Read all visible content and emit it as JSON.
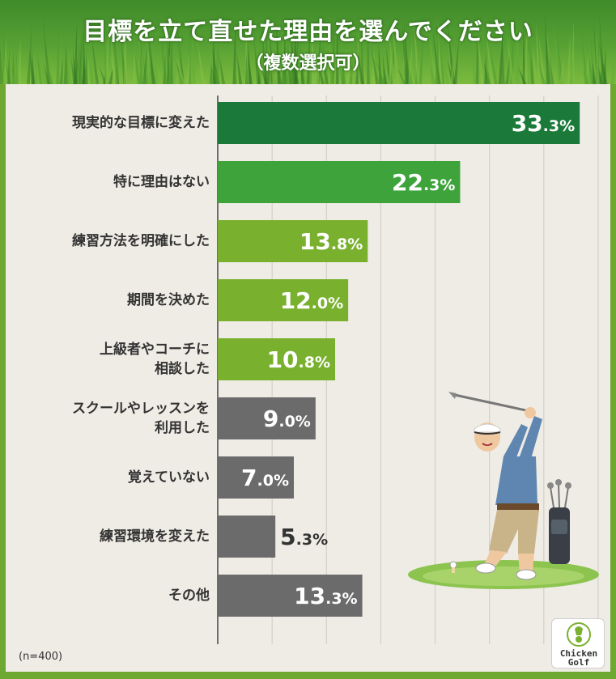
{
  "title": "目標を立て直せた理由を選んでください",
  "subtitle": "（複数選択可）",
  "note": "(n=400)",
  "logo": {
    "line1": "Chicken",
    "line2": "Golf"
  },
  "colors": {
    "top": "#1b7a3a",
    "second": "#3da33a",
    "green": "#79b12f",
    "gray": "#6b6b6b"
  },
  "chart_data": {
    "type": "bar",
    "orientation": "horizontal",
    "categories": [
      [
        "現実的な目標に変えた"
      ],
      [
        "特に理由はない"
      ],
      [
        "練習方法を明確にした"
      ],
      [
        "期間を決めた"
      ],
      [
        "上級者やコーチに",
        "相談した"
      ],
      [
        "スクールやレッスンを",
        "利用した"
      ],
      [
        "覚えていない"
      ],
      [
        "練習環境を変えた"
      ],
      [
        "その他"
      ]
    ],
    "values": [
      33.3,
      22.3,
      13.8,
      12.0,
      10.8,
      9.0,
      7.0,
      5.3,
      13.3
    ],
    "value_labels": [
      "33.3%",
      "22.3%",
      "13.8%",
      "12.0%",
      "10.8%",
      "9.0%",
      "7.0%",
      "5.3%",
      "13.3%"
    ],
    "unit": "%",
    "xlim": [
      0,
      35
    ],
    "grid": true,
    "legend": "none"
  }
}
